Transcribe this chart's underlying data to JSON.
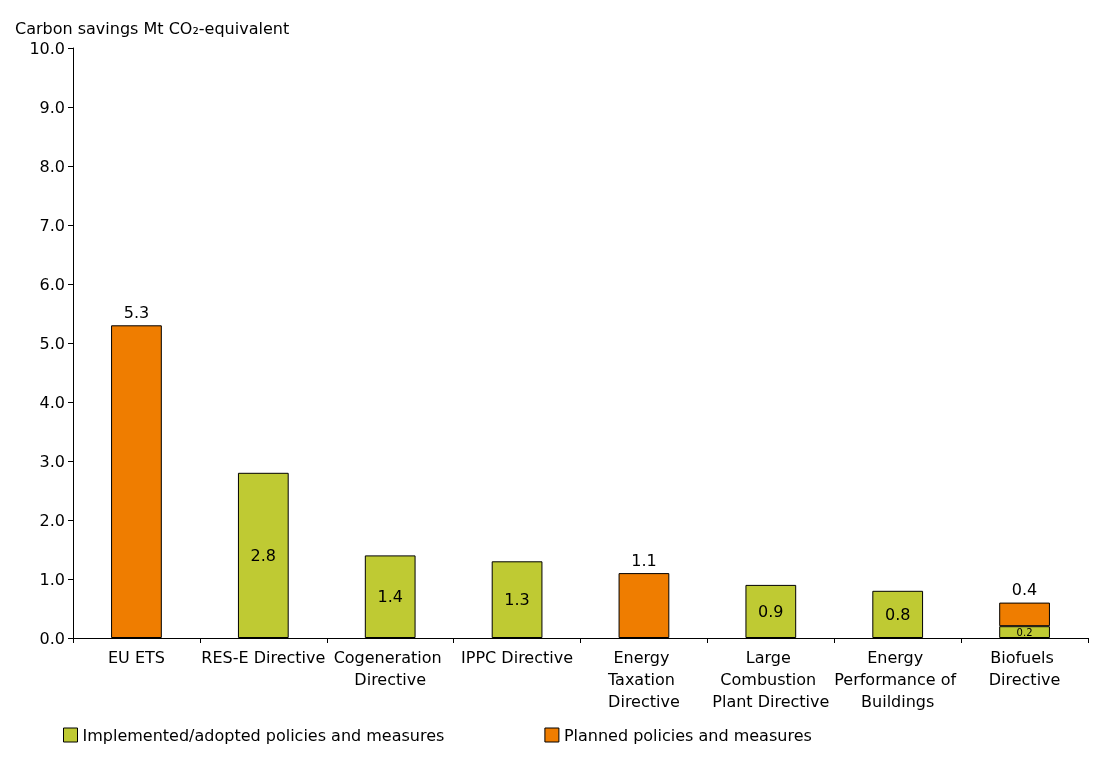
{
  "chart_data": {
    "type": "bar",
    "ylabel": "Carbon savings Mt CO₂-equivalent",
    "categories": [
      "EU ETS",
      "RES-E Directive",
      "Cogeneration Directive",
      "IPPC Directive",
      "Energy Taxation Directive",
      "Large Combustion Plant Directive",
      "Energy Performance of Buildings",
      "Biofuels Directive"
    ],
    "stacked": true,
    "series": [
      {
        "name": "Implemented/adopted policies and measures",
        "color": "#bfca33",
        "values": [
          null,
          2.8,
          1.4,
          1.3,
          null,
          0.9,
          0.8,
          0.2
        ]
      },
      {
        "name": "Planned policies and measures",
        "color": "#ef7d00",
        "values": [
          5.3,
          null,
          null,
          null,
          1.1,
          null,
          null,
          0.4
        ]
      }
    ],
    "ylim": [
      0,
      10
    ],
    "yticks": [
      {
        "value": 0,
        "label": "0.0"
      },
      {
        "value": 1,
        "label": "1.0"
      },
      {
        "value": 2,
        "label": "2.0"
      },
      {
        "value": 3,
        "label": "3.0"
      },
      {
        "value": 4,
        "label": "4.0"
      },
      {
        "value": 5,
        "label": "5.0"
      },
      {
        "value": 6,
        "label": "6.0"
      },
      {
        "value": 7,
        "label": "7.0"
      },
      {
        "value": 8,
        "label": "8.0"
      },
      {
        "value": 9,
        "label": "9.0"
      },
      {
        "value": 10,
        "label": "10.0"
      }
    ],
    "data_labels": true,
    "grid": false,
    "legend": "bottom"
  }
}
